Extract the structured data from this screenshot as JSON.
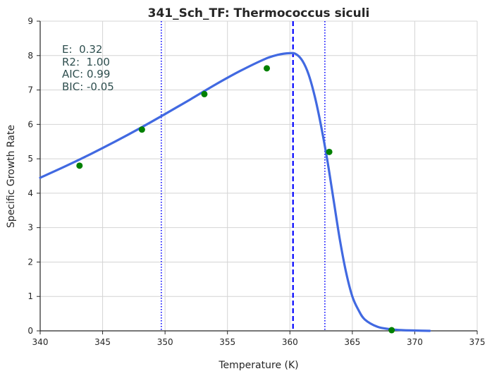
{
  "chart_data": {
    "type": "line",
    "title": "341_Sch_TF: Thermococcus siculi",
    "xlabel": "Temperature (K)",
    "ylabel": "Specific Growth Rate",
    "xlim": [
      340,
      375
    ],
    "ylim": [
      0,
      9
    ],
    "grid": true,
    "x_ticks": [
      "340",
      "345",
      "350",
      "355",
      "360",
      "365",
      "370",
      "375"
    ],
    "y_ticks": [
      "0",
      "1",
      "2",
      "3",
      "4",
      "5",
      "6",
      "7",
      "8",
      "9"
    ],
    "annotations": [
      "E:  0.32",
      "R2:  1.00",
      "AIC: 0.99",
      "BIC: -0.05"
    ],
    "observed_points": {
      "color": "#008000",
      "x": [
        343.15,
        348.15,
        353.15,
        358.15,
        363.15,
        368.15
      ],
      "y": [
        4.8,
        5.85,
        6.88,
        7.63,
        5.2,
        0.02
      ]
    },
    "fitted_curve": {
      "color": "#4169e1",
      "x": [
        340,
        342,
        344,
        346,
        348,
        350,
        352,
        354,
        356,
        358,
        359,
        360,
        360.5,
        361,
        361.5,
        362,
        362.5,
        363,
        363.5,
        364,
        364.5,
        365,
        365.5,
        366,
        367,
        368,
        369,
        370,
        371.2
      ],
      "y": [
        4.45,
        4.78,
        5.13,
        5.5,
        5.89,
        6.3,
        6.72,
        7.15,
        7.55,
        7.9,
        8.02,
        8.07,
        8.04,
        7.85,
        7.45,
        6.8,
        5.95,
        4.95,
        3.8,
        2.65,
        1.7,
        1.0,
        0.6,
        0.33,
        0.12,
        0.05,
        0.02,
        0.01,
        0.0
      ]
    },
    "vertical_lines": [
      {
        "x": 349.7,
        "style": "dotted",
        "color": "#0000ff"
      },
      {
        "x": 360.25,
        "style": "dashed",
        "color": "#0000ff"
      },
      {
        "x": 362.8,
        "style": "dotted",
        "color": "#0000ff"
      }
    ]
  }
}
